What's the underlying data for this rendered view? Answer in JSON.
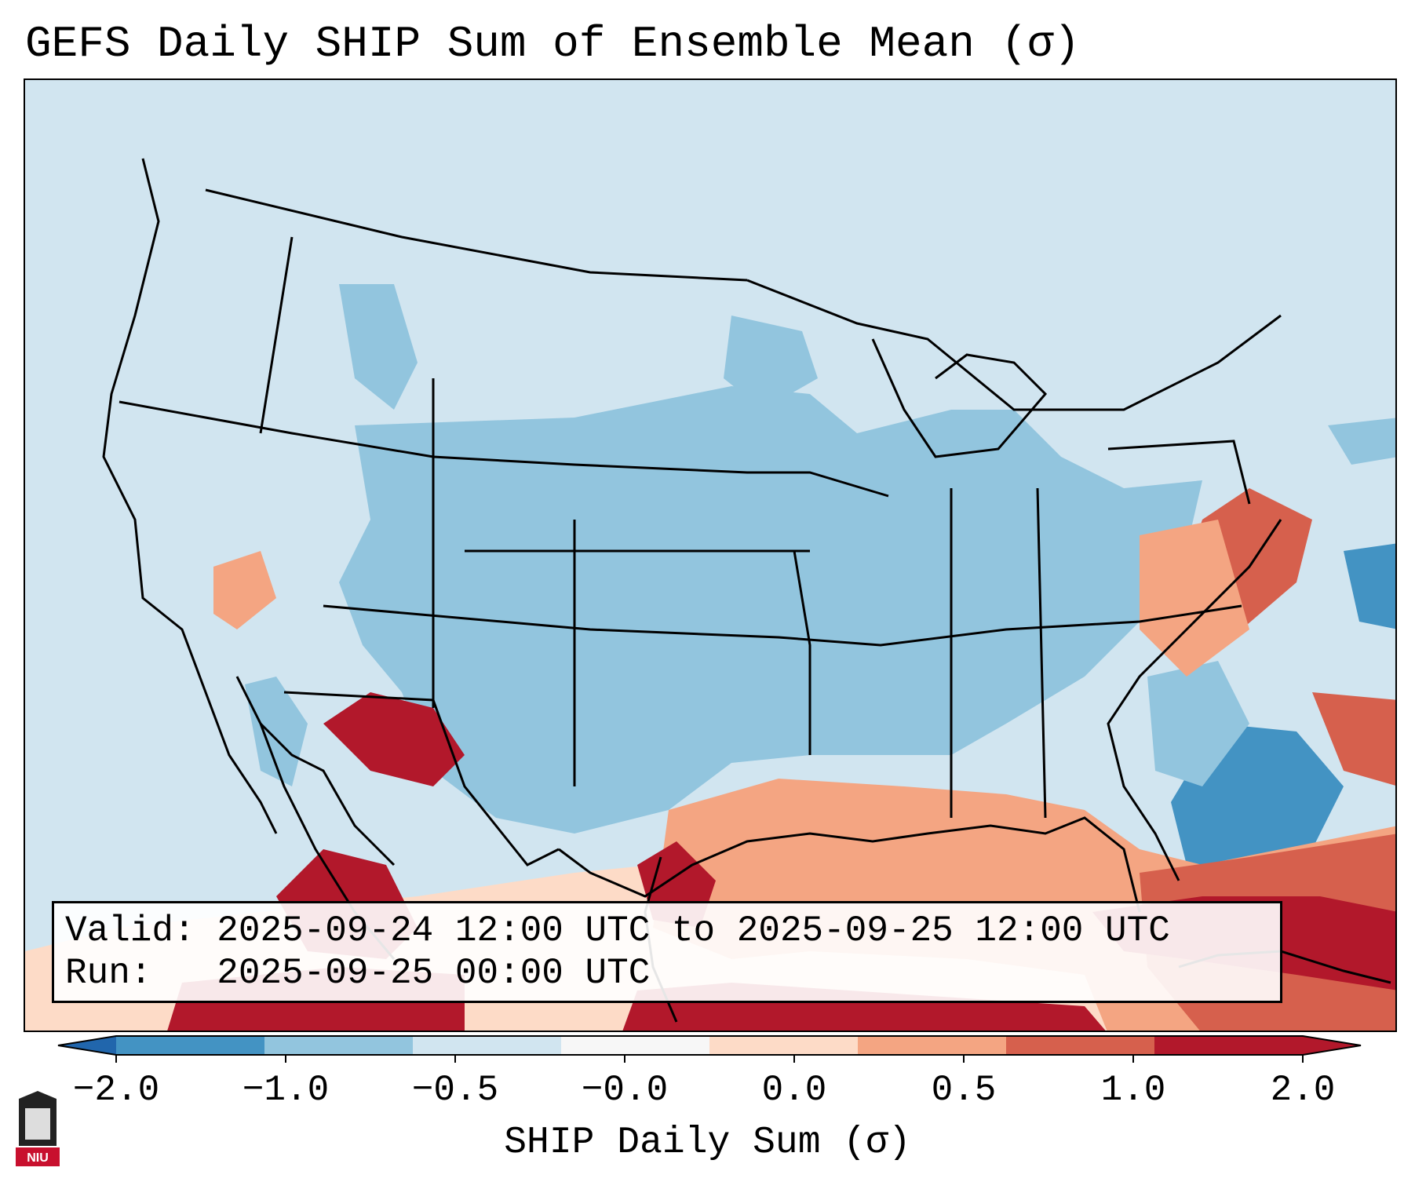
{
  "title": "GEFS Daily SHIP Sum of Ensemble Mean (σ)",
  "info": {
    "valid_line": "Valid: 2025-09-24 12:00 UTC to 2025-09-25 12:00 UTC",
    "run_line": "Run:   2025-09-25 00:00 UTC"
  },
  "colorbar": {
    "label": "SHIP Daily Sum (σ)",
    "ticks": [
      "−2.0",
      "−1.0",
      "−0.5",
      "−0.0",
      "0.0",
      "0.5",
      "1.0",
      "2.0"
    ],
    "colors": [
      "#4393c3",
      "#92c5de",
      "#d1e5f0",
      "#f7f7f7",
      "#fddbc7",
      "#f4a582",
      "#d6604d",
      "#b2182b"
    ],
    "extend_low_color": "#2166ac",
    "extend_high_color": "#b2182b"
  },
  "map": {
    "ocean_color": "#d1e5f0",
    "coast_color": "#000000"
  },
  "logo": {
    "text": "NIU",
    "color": "#c8102e"
  }
}
